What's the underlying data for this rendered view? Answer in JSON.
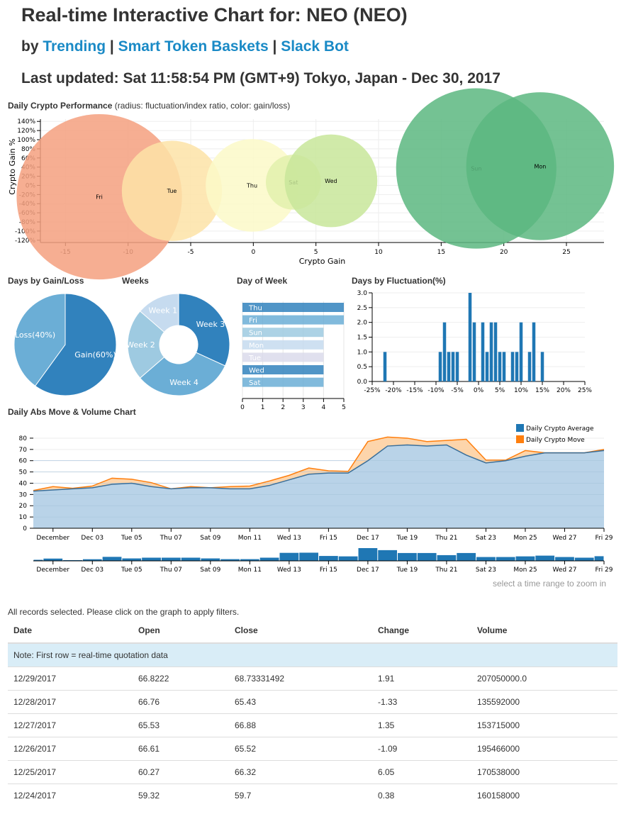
{
  "header": {
    "title": "Real-time Interactive Chart for: NEO (NEO)",
    "by_prefix": "by",
    "links": [
      "Trending",
      "Smart Token Baskets",
      "Slack Bot"
    ],
    "separator": "|",
    "last_updated": "Last updated: Sat 11:58:54 PM (GMT+9) Tokyo, Japan - Dec 30, 2017"
  },
  "chart_data": [
    {
      "id": "bubble",
      "type": "scatter",
      "title": "Daily Crypto Performance",
      "subtitle": "(radius: fluctuation/index ratio, color: gain/loss)",
      "xlabel": "Crypto Gain",
      "ylabel": "Crypto Gain %",
      "xlim": [
        -17,
        28
      ],
      "ylim": [
        -125,
        145
      ],
      "xticks": [
        -15,
        -10,
        -5,
        0,
        5,
        10,
        15,
        20,
        25
      ],
      "yticks": [
        -120,
        -100,
        -80,
        -60,
        -40,
        -20,
        0,
        20,
        40,
        60,
        80,
        100,
        120,
        140
      ],
      "ytick_suffix": "%",
      "grid": true,
      "points": [
        {
          "label": "Fri",
          "x": -12.3,
          "y": -25,
          "r": 6.6,
          "color": "#f4a07f"
        },
        {
          "label": "Tue",
          "x": -6.5,
          "y": -12,
          "r": 4.0,
          "color": "#fde3a7"
        },
        {
          "label": "Thu",
          "x": -0.1,
          "y": 0,
          "r": 3.7,
          "color": "#fbf9c8"
        },
        {
          "label": "Sat",
          "x": 3.2,
          "y": 7,
          "r": 2.2,
          "color": "#e2f0ad"
        },
        {
          "label": "Wed",
          "x": 6.2,
          "y": 10,
          "r": 3.7,
          "color": "#c8e69a"
        },
        {
          "label": "Sun",
          "x": 17.8,
          "y": 37,
          "r": 6.4,
          "color": "#5cb780"
        },
        {
          "label": "Mon",
          "x": 22.9,
          "y": 42,
          "r": 5.9,
          "color": "#5cb780"
        }
      ]
    },
    {
      "id": "gainloss",
      "type": "pie",
      "title": "Days by Gain/Loss",
      "slices": [
        {
          "label": "Gain(60%)",
          "value": 60,
          "color": "#3182bd"
        },
        {
          "label": "Loss(40%)",
          "value": 40,
          "color": "#6baed6"
        }
      ]
    },
    {
      "id": "weeks",
      "type": "pie",
      "title": "Weeks",
      "donut": true,
      "slices": [
        {
          "label": "Week 3",
          "value": 7,
          "color": "#3182bd"
        },
        {
          "label": "Week 4",
          "value": 7,
          "color": "#6baed6"
        },
        {
          "label": "Week 2",
          "value": 5,
          "color": "#9ecae1"
        },
        {
          "label": "Week 1",
          "value": 3,
          "color": "#c6dbef"
        }
      ]
    },
    {
      "id": "dayofweek",
      "type": "bar",
      "orientation": "horizontal",
      "title": "Day of Week",
      "categories": [
        "Thu",
        "Fri",
        "Sun",
        "Mon",
        "Tue",
        "Wed",
        "Sat"
      ],
      "values": [
        5,
        5,
        4,
        4,
        4,
        4,
        4
      ],
      "colors": [
        "#3182bd",
        "#6baed6",
        "#9ecae1",
        "#c6dbef",
        "#dadaeb",
        "#3182bd",
        "#6baed6"
      ],
      "xlim": [
        0,
        5
      ],
      "xticks": [
        0,
        1,
        2,
        3,
        4,
        5
      ]
    },
    {
      "id": "fluct",
      "type": "bar",
      "title": "Days by Fluctuation(%)",
      "xlim": [
        -25,
        25
      ],
      "ylim": [
        0,
        3
      ],
      "xticks": [
        -25,
        -20,
        -15,
        -10,
        -5,
        0,
        5,
        10,
        15,
        20,
        25
      ],
      "xtick_suffix": "%",
      "yticks": [
        "0.0",
        "0.5",
        "1.0",
        "1.5",
        "2.0",
        "2.5",
        "3.0"
      ],
      "x": [
        -22,
        -9,
        -8,
        -7,
        -6,
        -5,
        -2,
        -1,
        1,
        2,
        3,
        4,
        5,
        6,
        8,
        9,
        10,
        12,
        13,
        15
      ],
      "values": [
        1,
        1,
        2,
        1,
        1,
        1,
        3,
        2,
        2,
        1,
        2,
        2,
        1,
        1,
        1,
        1,
        2,
        1,
        2,
        1
      ],
      "color": "#1f77b4"
    },
    {
      "id": "absmove",
      "type": "area",
      "title": "Daily Abs Move & Volume Chart",
      "ylim": [
        0,
        85
      ],
      "yticks": [
        0,
        10,
        20,
        30,
        40,
        50,
        60,
        70,
        80
      ],
      "x": [
        "Nov 30",
        "Dec 01",
        "Dec 02",
        "Dec 03",
        "Dec 04",
        "Dec 05",
        "Dec 06",
        "Dec 07",
        "Dec 08",
        "Dec 09",
        "Dec 10",
        "Dec 11",
        "Dec 12",
        "Dec 13",
        "Dec 14",
        "Dec 15",
        "Dec 16",
        "Dec 17",
        "Dec 18",
        "Dec 19",
        "Dec 20",
        "Dec 21",
        "Dec 22",
        "Dec 23",
        "Dec 24",
        "Dec 25",
        "Dec 26",
        "Dec 27",
        "Dec 28",
        "Dec 29"
      ],
      "xtick_labels": [
        {
          "index": 1,
          "label": "December"
        },
        {
          "index": 3,
          "label": "Dec 03"
        },
        {
          "index": 5,
          "label": "Tue 05"
        },
        {
          "index": 7,
          "label": "Thu 07"
        },
        {
          "index": 9,
          "label": "Sat 09"
        },
        {
          "index": 11,
          "label": "Mon 11"
        },
        {
          "index": 13,
          "label": "Wed 13"
        },
        {
          "index": 15,
          "label": "Fri 15"
        },
        {
          "index": 17,
          "label": "Dec 17"
        },
        {
          "index": 19,
          "label": "Tue 19"
        },
        {
          "index": 21,
          "label": "Thu 21"
        },
        {
          "index": 23,
          "label": "Sat 23"
        },
        {
          "index": 25,
          "label": "Mon 25"
        },
        {
          "index": 27,
          "label": "Wed 27"
        },
        {
          "index": 29,
          "label": "Fri 29"
        }
      ],
      "series": [
        {
          "name": "Daily Crypto Average",
          "color": "#1f77b4",
          "values": [
            33,
            34,
            35,
            36,
            39,
            40,
            37,
            35,
            36,
            36,
            35,
            35,
            38,
            43,
            48,
            49,
            49,
            60,
            73,
            74,
            73,
            74,
            65,
            58,
            60,
            64,
            67,
            67,
            67,
            69
          ]
        },
        {
          "name": "Daily Crypto Move",
          "color": "#ff7f0e",
          "values": [
            33.5,
            37,
            35.5,
            37.5,
            44.5,
            43.5,
            40.5,
            35,
            37,
            36,
            37,
            37.5,
            42,
            47,
            53.5,
            51,
            50.5,
            77,
            81,
            80,
            77,
            78,
            79,
            60.5,
            60.5,
            69,
            67,
            67,
            67,
            70
          ]
        }
      ],
      "legend": "top-right"
    },
    {
      "id": "volume",
      "type": "bar",
      "title": "",
      "x_same_as": "absmove",
      "values": [
        0.13,
        0.28,
        0.09,
        0.2,
        0.49,
        0.3,
        0.39,
        0.39,
        0.39,
        0.3,
        0.21,
        0.21,
        0.39,
        0.98,
        1.0,
        0.6,
        0.55,
        1.56,
        1.31,
        0.96,
        0.96,
        0.7,
        0.96,
        0.47,
        0.47,
        0.55,
        0.64,
        0.47,
        0.39,
        0.57
      ],
      "value_unit": "relative volume",
      "color": "#1f77b4",
      "hint": "select a time range to zoom in"
    }
  ],
  "table": {
    "status": "All records selected. Please click on the graph to apply filters.",
    "columns": [
      "Date",
      "Open",
      "Close",
      "Change",
      "Volume"
    ],
    "note": "Note: First row = real-time quotation data",
    "rows": [
      [
        "12/29/2017",
        "66.8222",
        "68.73331492",
        "1.91",
        "207050000.0"
      ],
      [
        "12/28/2017",
        "66.76",
        "65.43",
        "-1.33",
        "135592000"
      ],
      [
        "12/27/2017",
        "65.53",
        "66.88",
        "1.35",
        "153715000"
      ],
      [
        "12/26/2017",
        "66.61",
        "65.52",
        "-1.09",
        "195466000"
      ],
      [
        "12/25/2017",
        "60.27",
        "66.32",
        "6.05",
        "170538000"
      ],
      [
        "12/24/2017",
        "59.32",
        "59.7",
        "0.38",
        "160158000"
      ]
    ]
  }
}
